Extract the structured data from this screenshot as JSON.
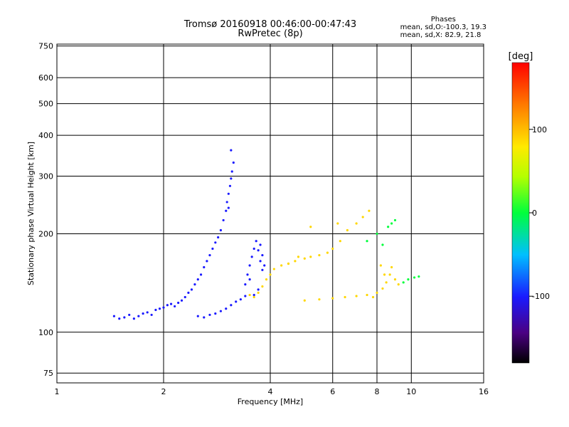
{
  "header": {
    "title_line1": "Tromsø 20160918 00:46:00-00:47:43",
    "title_line2": "RwPretec (8p)"
  },
  "phases_box": {
    "heading": "Phases",
    "line1": "mean, sd,O:-100.3, 19.3",
    "line2": "mean, sd,X: 82.9, 21.8"
  },
  "chart_data": {
    "type": "scatter",
    "xlabel": "Frequency [MHz]",
    "ylabel": "Stationary phase Virtual Height [km]",
    "x_scale": "log",
    "y_scale": "log",
    "xlim": [
      1,
      16
    ],
    "ylim": [
      70,
      760
    ],
    "x_ticks": [
      1,
      2,
      4,
      6,
      8,
      10,
      16
    ],
    "x_tick_labels": [
      "1",
      "2",
      "4",
      "6",
      "8",
      "10",
      "16"
    ],
    "y_ticks": [
      75,
      100,
      200,
      300,
      400,
      500,
      600,
      750
    ],
    "y_tick_labels": [
      "75",
      "100",
      "200",
      "300",
      "400",
      "500",
      "600",
      "750"
    ],
    "grid": true,
    "colorbar": {
      "label": "[deg]",
      "range": [
        -180,
        180
      ],
      "ticks": [
        100,
        0,
        -100
      ],
      "tick_labels": [
        "100",
        "0",
        "-100"
      ],
      "colors": [
        "#000000",
        "#6a00a8",
        "#1a1aff",
        "#00c8ff",
        "#00ff3c",
        "#c8ff00",
        "#ffd700",
        "#ff6a00",
        "#ff0000"
      ]
    },
    "series": [
      {
        "mode": "O",
        "phase_deg": -100,
        "points": [
          [
            1.45,
            112
          ],
          [
            1.5,
            110
          ],
          [
            1.55,
            111
          ],
          [
            1.6,
            113
          ],
          [
            1.65,
            110
          ],
          [
            1.7,
            112
          ],
          [
            1.75,
            114
          ],
          [
            1.8,
            115
          ],
          [
            1.85,
            113
          ],
          [
            1.9,
            117
          ],
          [
            1.95,
            118
          ],
          [
            2.0,
            119
          ],
          [
            2.05,
            121
          ],
          [
            2.1,
            122
          ],
          [
            2.15,
            120
          ],
          [
            2.2,
            123
          ],
          [
            2.25,
            125
          ],
          [
            2.3,
            128
          ],
          [
            2.35,
            132
          ],
          [
            2.4,
            135
          ],
          [
            2.45,
            140
          ],
          [
            2.5,
            145
          ],
          [
            2.55,
            150
          ],
          [
            2.6,
            158
          ],
          [
            2.65,
            165
          ],
          [
            2.7,
            172
          ],
          [
            2.75,
            180
          ],
          [
            2.8,
            188
          ],
          [
            2.85,
            195
          ],
          [
            2.9,
            205
          ],
          [
            2.5,
            112
          ],
          [
            2.6,
            111
          ],
          [
            2.7,
            113
          ],
          [
            2.8,
            114
          ],
          [
            2.9,
            116
          ],
          [
            3.0,
            118
          ],
          [
            3.1,
            121
          ],
          [
            3.2,
            124
          ],
          [
            3.3,
            126
          ],
          [
            3.4,
            129
          ],
          [
            2.95,
            220
          ],
          [
            3.0,
            235
          ],
          [
            3.02,
            250
          ],
          [
            3.05,
            265
          ],
          [
            3.08,
            280
          ],
          [
            3.1,
            295
          ],
          [
            3.12,
            310
          ],
          [
            3.15,
            330
          ],
          [
            3.1,
            360
          ],
          [
            3.05,
            240
          ],
          [
            3.4,
            140
          ],
          [
            3.45,
            150
          ],
          [
            3.5,
            160
          ],
          [
            3.55,
            170
          ],
          [
            3.6,
            180
          ],
          [
            3.65,
            190
          ],
          [
            3.7,
            178
          ],
          [
            3.75,
            165
          ],
          [
            3.8,
            155
          ],
          [
            3.5,
            145
          ],
          [
            3.6,
            130
          ],
          [
            3.7,
            135
          ],
          [
            3.8,
            172
          ],
          [
            3.75,
            185
          ],
          [
            3.85,
            160
          ]
        ]
      },
      {
        "mode": "X",
        "phase_deg": 83,
        "points": [
          [
            3.5,
            130
          ],
          [
            3.6,
            128
          ],
          [
            3.7,
            132
          ],
          [
            3.8,
            138
          ],
          [
            3.9,
            145
          ],
          [
            4.0,
            150
          ],
          [
            4.1,
            156
          ],
          [
            4.3,
            160
          ],
          [
            4.5,
            162
          ],
          [
            4.7,
            165
          ],
          [
            5.0,
            168
          ],
          [
            5.2,
            170
          ],
          [
            5.5,
            172
          ],
          [
            5.8,
            175
          ],
          [
            6.0,
            180
          ],
          [
            6.3,
            190
          ],
          [
            6.6,
            205
          ],
          [
            7.0,
            215
          ],
          [
            7.3,
            225
          ],
          [
            7.6,
            235
          ],
          [
            5.5,
            126
          ],
          [
            6.0,
            127
          ],
          [
            6.5,
            128
          ],
          [
            7.0,
            129
          ],
          [
            7.5,
            130
          ],
          [
            8.0,
            132
          ],
          [
            8.3,
            136
          ],
          [
            8.5,
            142
          ],
          [
            8.7,
            150
          ],
          [
            8.8,
            158
          ],
          [
            9.0,
            145
          ],
          [
            9.2,
            140
          ],
          [
            8.2,
            160
          ],
          [
            8.4,
            150
          ],
          [
            7.8,
            128
          ],
          [
            5.0,
            125
          ],
          [
            4.5,
            162
          ],
          [
            4.8,
            170
          ],
          [
            5.2,
            210
          ],
          [
            6.2,
            215
          ]
        ]
      },
      {
        "mode": "other",
        "phase_deg": 0,
        "points": [
          [
            9.5,
            142
          ],
          [
            9.8,
            145
          ],
          [
            10.2,
            147
          ],
          [
            10.5,
            148
          ],
          [
            8.6,
            210
          ],
          [
            8.8,
            215
          ],
          [
            9.0,
            220
          ],
          [
            8.0,
            200
          ],
          [
            7.5,
            190
          ],
          [
            8.3,
            185
          ]
        ]
      }
    ]
  }
}
